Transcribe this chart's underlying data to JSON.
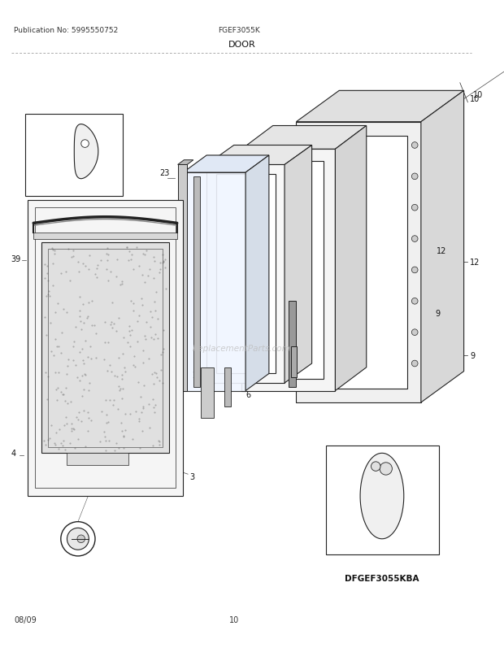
{
  "pub_no": "Publication No: 5995550752",
  "model": "FGEF3055K",
  "section": "DOOR",
  "date": "08/09",
  "page": "10",
  "sub_model": "DFGEF3055KBA",
  "bg_color": "#ffffff",
  "fig_width": 6.2,
  "fig_height": 8.03,
  "dpi": 100,
  "lc": "#222222",
  "lw": 0.8
}
